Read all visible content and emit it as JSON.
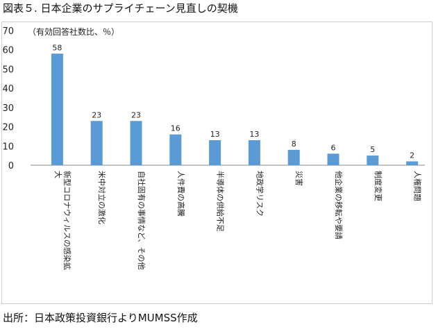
{
  "figure_title": "図表５. 日本企業のサプライチェーン見直しの契機",
  "source_note": "出所：日本政策投資銀行よりMUMSS作成",
  "chart_data": {
    "type": "bar",
    "title": "",
    "xlabel": "",
    "ylabel": "（有効回答社数比、％）",
    "ylim": [
      0,
      70
    ],
    "yticks": [
      0,
      10,
      20,
      30,
      40,
      50,
      60,
      70
    ],
    "grid": false,
    "bar_color": "#5b9bd5",
    "categories": [
      "新型コロナウィルスの感染拡大",
      "米中対立の激化",
      "自社固有の事情など、その他",
      "人件費の高騰",
      "半導体の供給不足",
      "地政学リスク",
      "災害",
      "他企業の移転や要請",
      "制度変更",
      "人権問題"
    ],
    "values": [
      58,
      23,
      23,
      16,
      13,
      13,
      8,
      6,
      5,
      2
    ]
  }
}
